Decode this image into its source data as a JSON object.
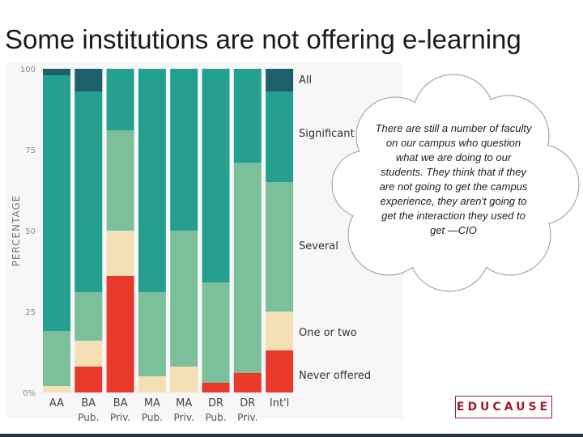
{
  "slide": {
    "title": "Some institutions are not offering e-learning",
    "quote": "There are still a number of faculty on our campus who question what we are doing to our students. They think that if they are not going to get the campus experience, they aren't going to get the interaction they used to get —CIO",
    "logo_text": "EDUCAUSE"
  },
  "chart_data": {
    "type": "bar",
    "stacked": true,
    "orientation": "vertical",
    "ylabel": "PERCENTAGE",
    "ylim": [
      0,
      100
    ],
    "yticks": [
      "0%",
      "25",
      "50",
      "75",
      "100"
    ],
    "categories": [
      {
        "label": "AA",
        "sub": ""
      },
      {
        "label": "BA",
        "sub": "Pub."
      },
      {
        "label": "BA",
        "sub": "Priv."
      },
      {
        "label": "MA",
        "sub": "Pub."
      },
      {
        "label": "MA",
        "sub": "Priv."
      },
      {
        "label": "DR",
        "sub": "Pub."
      },
      {
        "label": "DR",
        "sub": "Priv."
      },
      {
        "label": "Int'l",
        "sub": ""
      }
    ],
    "series": [
      {
        "name": "Never offered",
        "color": "#e8392a",
        "values": [
          0,
          8,
          36,
          0,
          0,
          3,
          6,
          13
        ]
      },
      {
        "name": "One or two",
        "color": "#f4dfb6",
        "values": [
          2,
          8,
          14,
          5,
          8,
          0,
          0,
          12
        ]
      },
      {
        "name": "Several",
        "color": "#7cc09b",
        "values": [
          17,
          15,
          31,
          26,
          42,
          31,
          65,
          40
        ]
      },
      {
        "name": "Significant",
        "color": "#25a090",
        "values": [
          79,
          62,
          19,
          69,
          50,
          66,
          29,
          28
        ]
      },
      {
        "name": "All",
        "color": "#1e5f6b",
        "values": [
          2,
          7,
          0,
          0,
          0,
          0,
          0,
          7
        ]
      }
    ],
    "legend_position": "right",
    "grid": false
  }
}
